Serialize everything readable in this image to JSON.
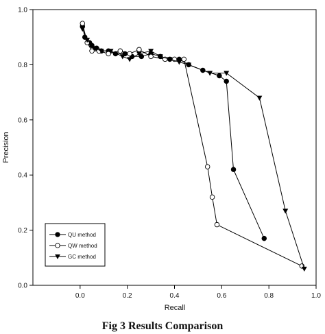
{
  "caption": "Fig 3 Results Comparison",
  "chart_data": {
    "type": "line",
    "title": "",
    "xlabel": "Recall",
    "ylabel": "Precision",
    "xlim": [
      -0.2,
      1.0
    ],
    "ylim": [
      0.0,
      1.0
    ],
    "x_ticks": [
      0.0,
      0.2,
      0.4,
      0.6,
      0.8,
      1.0
    ],
    "y_ticks": [
      0.0,
      0.2,
      0.4,
      0.6,
      0.8,
      1.0
    ],
    "x_tick_labels": [
      "0.0",
      "0.2",
      "0.4",
      "0.6",
      "0.8",
      "1.0"
    ],
    "y_tick_labels": [
      "0.0",
      "0.2",
      "0.4",
      "0.6",
      "0.8",
      "1.0"
    ],
    "grid": false,
    "legend_position": "bottom-left",
    "series": [
      {
        "name": "QU method",
        "marker": "filled-circle",
        "color": "#000000",
        "points": [
          [
            0.01,
            0.94
          ],
          [
            0.02,
            0.9
          ],
          [
            0.04,
            0.88
          ],
          [
            0.05,
            0.87
          ],
          [
            0.07,
            0.86
          ],
          [
            0.09,
            0.85
          ],
          [
            0.12,
            0.85
          ],
          [
            0.15,
            0.84
          ],
          [
            0.19,
            0.84
          ],
          [
            0.22,
            0.83
          ],
          [
            0.26,
            0.83
          ],
          [
            0.3,
            0.84
          ],
          [
            0.34,
            0.83
          ],
          [
            0.38,
            0.82
          ],
          [
            0.42,
            0.82
          ],
          [
            0.46,
            0.8
          ],
          [
            0.52,
            0.78
          ],
          [
            0.59,
            0.76
          ],
          [
            0.62,
            0.74
          ],
          [
            0.65,
            0.42
          ],
          [
            0.78,
            0.17
          ]
        ]
      },
      {
        "name": "QW method",
        "marker": "open-circle",
        "color": "#000000",
        "points": [
          [
            0.01,
            0.95
          ],
          [
            0.03,
            0.88
          ],
          [
            0.05,
            0.85
          ],
          [
            0.08,
            0.85
          ],
          [
            0.12,
            0.84
          ],
          [
            0.17,
            0.85
          ],
          [
            0.21,
            0.84
          ],
          [
            0.25,
            0.855
          ],
          [
            0.3,
            0.83
          ],
          [
            0.36,
            0.82
          ],
          [
            0.4,
            0.82
          ],
          [
            0.44,
            0.82
          ],
          [
            0.54,
            0.43
          ],
          [
            0.56,
            0.32
          ],
          [
            0.58,
            0.22
          ],
          [
            0.94,
            0.07
          ]
        ]
      },
      {
        "name": "GC method",
        "marker": "filled-triangle-down",
        "color": "#000000",
        "points": [
          [
            0.01,
            0.93
          ],
          [
            0.03,
            0.89
          ],
          [
            0.06,
            0.86
          ],
          [
            0.09,
            0.85
          ],
          [
            0.13,
            0.85
          ],
          [
            0.18,
            0.83
          ],
          [
            0.21,
            0.82
          ],
          [
            0.25,
            0.84
          ],
          [
            0.3,
            0.85
          ],
          [
            0.34,
            0.83
          ],
          [
            0.38,
            0.82
          ],
          [
            0.42,
            0.81
          ],
          [
            0.46,
            0.8
          ],
          [
            0.55,
            0.77
          ],
          [
            0.62,
            0.77
          ],
          [
            0.76,
            0.68
          ],
          [
            0.87,
            0.27
          ],
          [
            0.95,
            0.06
          ]
        ]
      }
    ]
  }
}
